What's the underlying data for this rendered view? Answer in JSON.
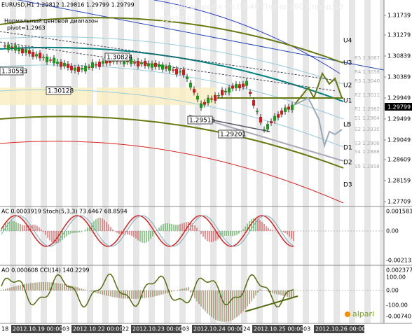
{
  "header": {
    "symbol_line": "EURUSD,H1 1.29812 1.29816 1.29799 1.29799",
    "range_title": "Нормальный ценовой диапазон",
    "pivot": "pivot=1.2963",
    "status": "Текущее время 06:03:48 Плечо:500 Спрэд:18",
    "balance": "$9618.03",
    "orders": "/ 0"
  },
  "price_tags": [
    "1.30553",
    "1.30824",
    "1.30128",
    "1.29515",
    "1.29201"
  ],
  "levels": [
    "U4",
    "U3",
    "U2",
    "U1",
    "LB",
    "D1",
    "D2",
    "D3"
  ],
  "pivots": [
    "R5 1.3087",
    "R4 1.3058",
    "R3 1.3040",
    "R2 1.3011",
    "R1 1.2982",
    "S1 1.2964",
    "S2 1.2935",
    "S3 1.2906",
    "S4 1.2888",
    "S5 1.2858"
  ],
  "price_axis": [
    "1.31739",
    "1.31279",
    "1.30839",
    "1.30389",
    "1.29949",
    "1.29499",
    "1.29049",
    "1.28609",
    "1.28159",
    "1.27709"
  ],
  "current_price": "1.29799",
  "panel1": {
    "label": "AC 0.0003919 Stoch(5,3,3) 73.6467 68.8594",
    "axis": [
      "0.001583",
      "0.00",
      "-0.002133"
    ]
  },
  "panel2": {
    "label": "AO 0.000608 CCI(14) 140.2299",
    "axis": [
      "0.002377",
      "100.00",
      "0.00",
      "-100.00",
      "-0.00740"
    ]
  },
  "logo": "alpari",
  "time_axis": [
    "18",
    "2012.10.19 00:00",
    "03",
    "2012.10.22 00:00",
    "22",
    "2012.10.23 00:00",
    "03",
    "2012.10.24 00:00",
    "24",
    "2012.10.25 00:00",
    "03",
    "2012.10.26 00:00"
  ]
}
